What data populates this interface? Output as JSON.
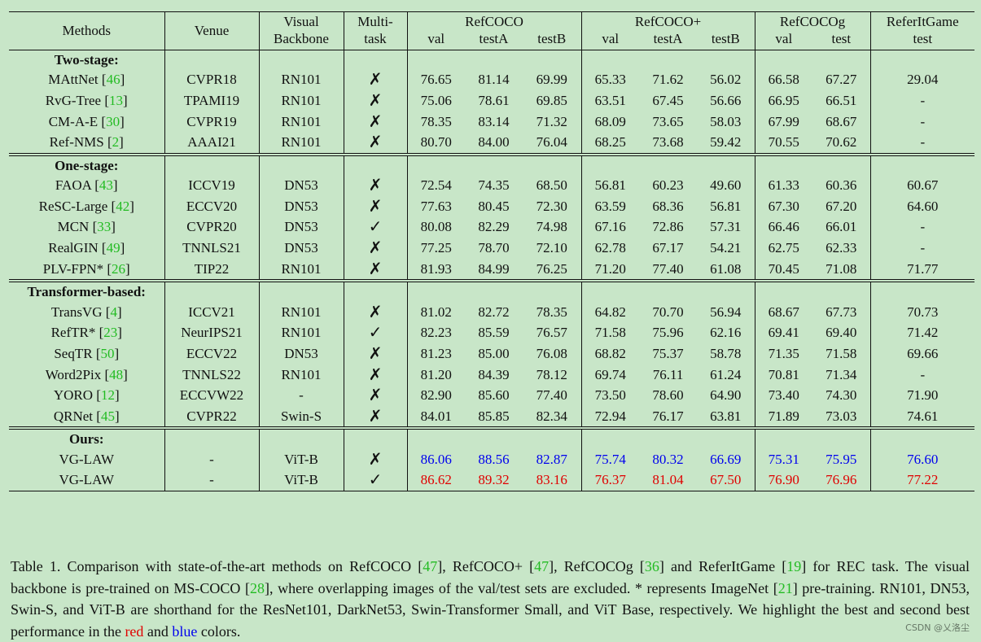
{
  "header": {
    "methods": "Methods",
    "venue": "Venue",
    "backbone_l1": "Visual",
    "backbone_l2": "Backbone",
    "multitask_l1": "Multi-",
    "multitask_l2": "task",
    "refcoco": "RefCOCO",
    "refcocop": "RefCOCO+",
    "refcocog": "RefCOCOg",
    "referit": "ReferItGame",
    "val": "val",
    "testA": "testA",
    "testB": "testB",
    "test": "test"
  },
  "groups": [
    {
      "label": "Two-stage:",
      "rows": [
        {
          "method": "MAttNet",
          "cite": "46",
          "suffix": "",
          "venue": "CVPR18",
          "backbone": "RN101",
          "multitask": "✗",
          "vals": [
            "76.65",
            "81.14",
            "69.99",
            "65.33",
            "71.62",
            "56.02",
            "66.58",
            "67.27",
            "29.04"
          ]
        },
        {
          "method": "RvG-Tree",
          "cite": "13",
          "suffix": "",
          "venue": "TPAMI19",
          "backbone": "RN101",
          "multitask": "✗",
          "vals": [
            "75.06",
            "78.61",
            "69.85",
            "63.51",
            "67.45",
            "56.66",
            "66.95",
            "66.51",
            "-"
          ]
        },
        {
          "method": "CM-A-E",
          "cite": "30",
          "suffix": "",
          "venue": "CVPR19",
          "backbone": "RN101",
          "multitask": "✗",
          "vals": [
            "78.35",
            "83.14",
            "71.32",
            "68.09",
            "73.65",
            "58.03",
            "67.99",
            "68.67",
            "-"
          ]
        },
        {
          "method": "Ref-NMS",
          "cite": "2",
          "suffix": "",
          "venue": "AAAI21",
          "backbone": "RN101",
          "multitask": "✗",
          "vals": [
            "80.70",
            "84.00",
            "76.04",
            "68.25",
            "73.68",
            "59.42",
            "70.55",
            "70.62",
            "-"
          ]
        }
      ]
    },
    {
      "label": "One-stage:",
      "rows": [
        {
          "method": "FAOA",
          "cite": "43",
          "suffix": "",
          "venue": "ICCV19",
          "backbone": "DN53",
          "multitask": "✗",
          "vals": [
            "72.54",
            "74.35",
            "68.50",
            "56.81",
            "60.23",
            "49.60",
            "61.33",
            "60.36",
            "60.67"
          ]
        },
        {
          "method": "ReSC-Large",
          "cite": "42",
          "suffix": "",
          "venue": "ECCV20",
          "backbone": "DN53",
          "multitask": "✗",
          "vals": [
            "77.63",
            "80.45",
            "72.30",
            "63.59",
            "68.36",
            "56.81",
            "67.30",
            "67.20",
            "64.60"
          ]
        },
        {
          "method": "MCN",
          "cite": "33",
          "suffix": "",
          "venue": "CVPR20",
          "backbone": "DN53",
          "multitask": "✓",
          "vals": [
            "80.08",
            "82.29",
            "74.98",
            "67.16",
            "72.86",
            "57.31",
            "66.46",
            "66.01",
            "-"
          ]
        },
        {
          "method": "RealGIN",
          "cite": "49",
          "suffix": "",
          "venue": "TNNLS21",
          "backbone": "DN53",
          "multitask": "✗",
          "vals": [
            "77.25",
            "78.70",
            "72.10",
            "62.78",
            "67.17",
            "54.21",
            "62.75",
            "62.33",
            "-"
          ]
        },
        {
          "method": "PLV-FPN*",
          "cite": "26",
          "suffix": "",
          "venue": "TIP22",
          "backbone": "RN101",
          "multitask": "✗",
          "vals": [
            "81.93",
            "84.99",
            "76.25",
            "71.20",
            "77.40",
            "61.08",
            "70.45",
            "71.08",
            "71.77"
          ]
        }
      ]
    },
    {
      "label": "Transformer-based:",
      "rows": [
        {
          "method": "TransVG",
          "cite": "4",
          "suffix": "",
          "venue": "ICCV21",
          "backbone": "RN101",
          "multitask": "✗",
          "vals": [
            "81.02",
            "82.72",
            "78.35",
            "64.82",
            "70.70",
            "56.94",
            "68.67",
            "67.73",
            "70.73"
          ]
        },
        {
          "method": "RefTR*",
          "cite": "23",
          "suffix": "",
          "venue": "NeurIPS21",
          "backbone": "RN101",
          "multitask": "✓",
          "vals": [
            "82.23",
            "85.59",
            "76.57",
            "71.58",
            "75.96",
            "62.16",
            "69.41",
            "69.40",
            "71.42"
          ]
        },
        {
          "method": "SeqTR",
          "cite": "50",
          "suffix": "",
          "venue": "ECCV22",
          "backbone": "DN53",
          "multitask": "✗",
          "vals": [
            "81.23",
            "85.00",
            "76.08",
            "68.82",
            "75.37",
            "58.78",
            "71.35",
            "71.58",
            "69.66"
          ]
        },
        {
          "method": "Word2Pix",
          "cite": "48",
          "suffix": "",
          "venue": "TNNLS22",
          "backbone": "RN101",
          "multitask": "✗",
          "vals": [
            "81.20",
            "84.39",
            "78.12",
            "69.74",
            "76.11",
            "61.24",
            "70.81",
            "71.34",
            "-"
          ]
        },
        {
          "method": "YORO",
          "cite": "12",
          "suffix": "",
          "venue": "ECCVW22",
          "backbone": "-",
          "multitask": "✗",
          "vals": [
            "82.90",
            "85.60",
            "77.40",
            "73.50",
            "78.60",
            "64.90",
            "73.40",
            "74.30",
            "71.90"
          ]
        },
        {
          "method": "QRNet",
          "cite": "45",
          "suffix": "",
          "venue": "CVPR22",
          "backbone": "Swin-S",
          "multitask": "✗",
          "vals": [
            "84.01",
            "85.85",
            "82.34",
            "72.94",
            "76.17",
            "63.81",
            "71.89",
            "73.03",
            "74.61"
          ]
        }
      ]
    },
    {
      "label": "Ours:",
      "rows": [
        {
          "method": "VG-LAW",
          "cite": "",
          "suffix": "",
          "venue": "-",
          "backbone": "ViT-B",
          "multitask": "✗",
          "highlight": "#0000ee",
          "vals": [
            "86.06",
            "88.56",
            "82.87",
            "75.74",
            "80.32",
            "66.69",
            "75.31",
            "75.95",
            "76.60"
          ]
        },
        {
          "method": "VG-LAW",
          "cite": "",
          "suffix": "",
          "venue": "-",
          "backbone": "ViT-B",
          "multitask": "✓",
          "highlight": "#e00000",
          "vals": [
            "86.62",
            "89.32",
            "83.16",
            "76.37",
            "81.04",
            "67.50",
            "76.90",
            "76.96",
            "77.22"
          ]
        }
      ]
    }
  ],
  "caption": {
    "t1": "Table 1. Comparison with state-of-the-art methods on RefCOCO [",
    "c1": "47",
    "t2": "], RefCOCO+ [",
    "c2": "47",
    "t3": "], RefCOCOg [",
    "c3": "36",
    "t4": "] and ReferItGame [",
    "c4": "19",
    "t5": "] for REC task.  The visual backbone is pre-trained on MS-COCO [",
    "c5": "28",
    "t6": "], where overlapping images of the val/test sets are excluded.  * represents ImageNet [",
    "c6": "21",
    "t7": "] pre-training.  RN101, DN53, Swin-S, and ViT-B are shorthand for the ResNet101, DarkNet53, Swin-Transformer Small, and ViT Base, respectively. We highlight the best and second best performance in the ",
    "red_word": "red",
    "t8": " and ",
    "blue_word": "blue",
    "t9": " colors."
  },
  "watermark": "CSDN @乂洛尘",
  "colors": {
    "background": "#c8e6c8",
    "cite": "#22bb22",
    "best": "#e00000",
    "second": "#0000ee"
  }
}
